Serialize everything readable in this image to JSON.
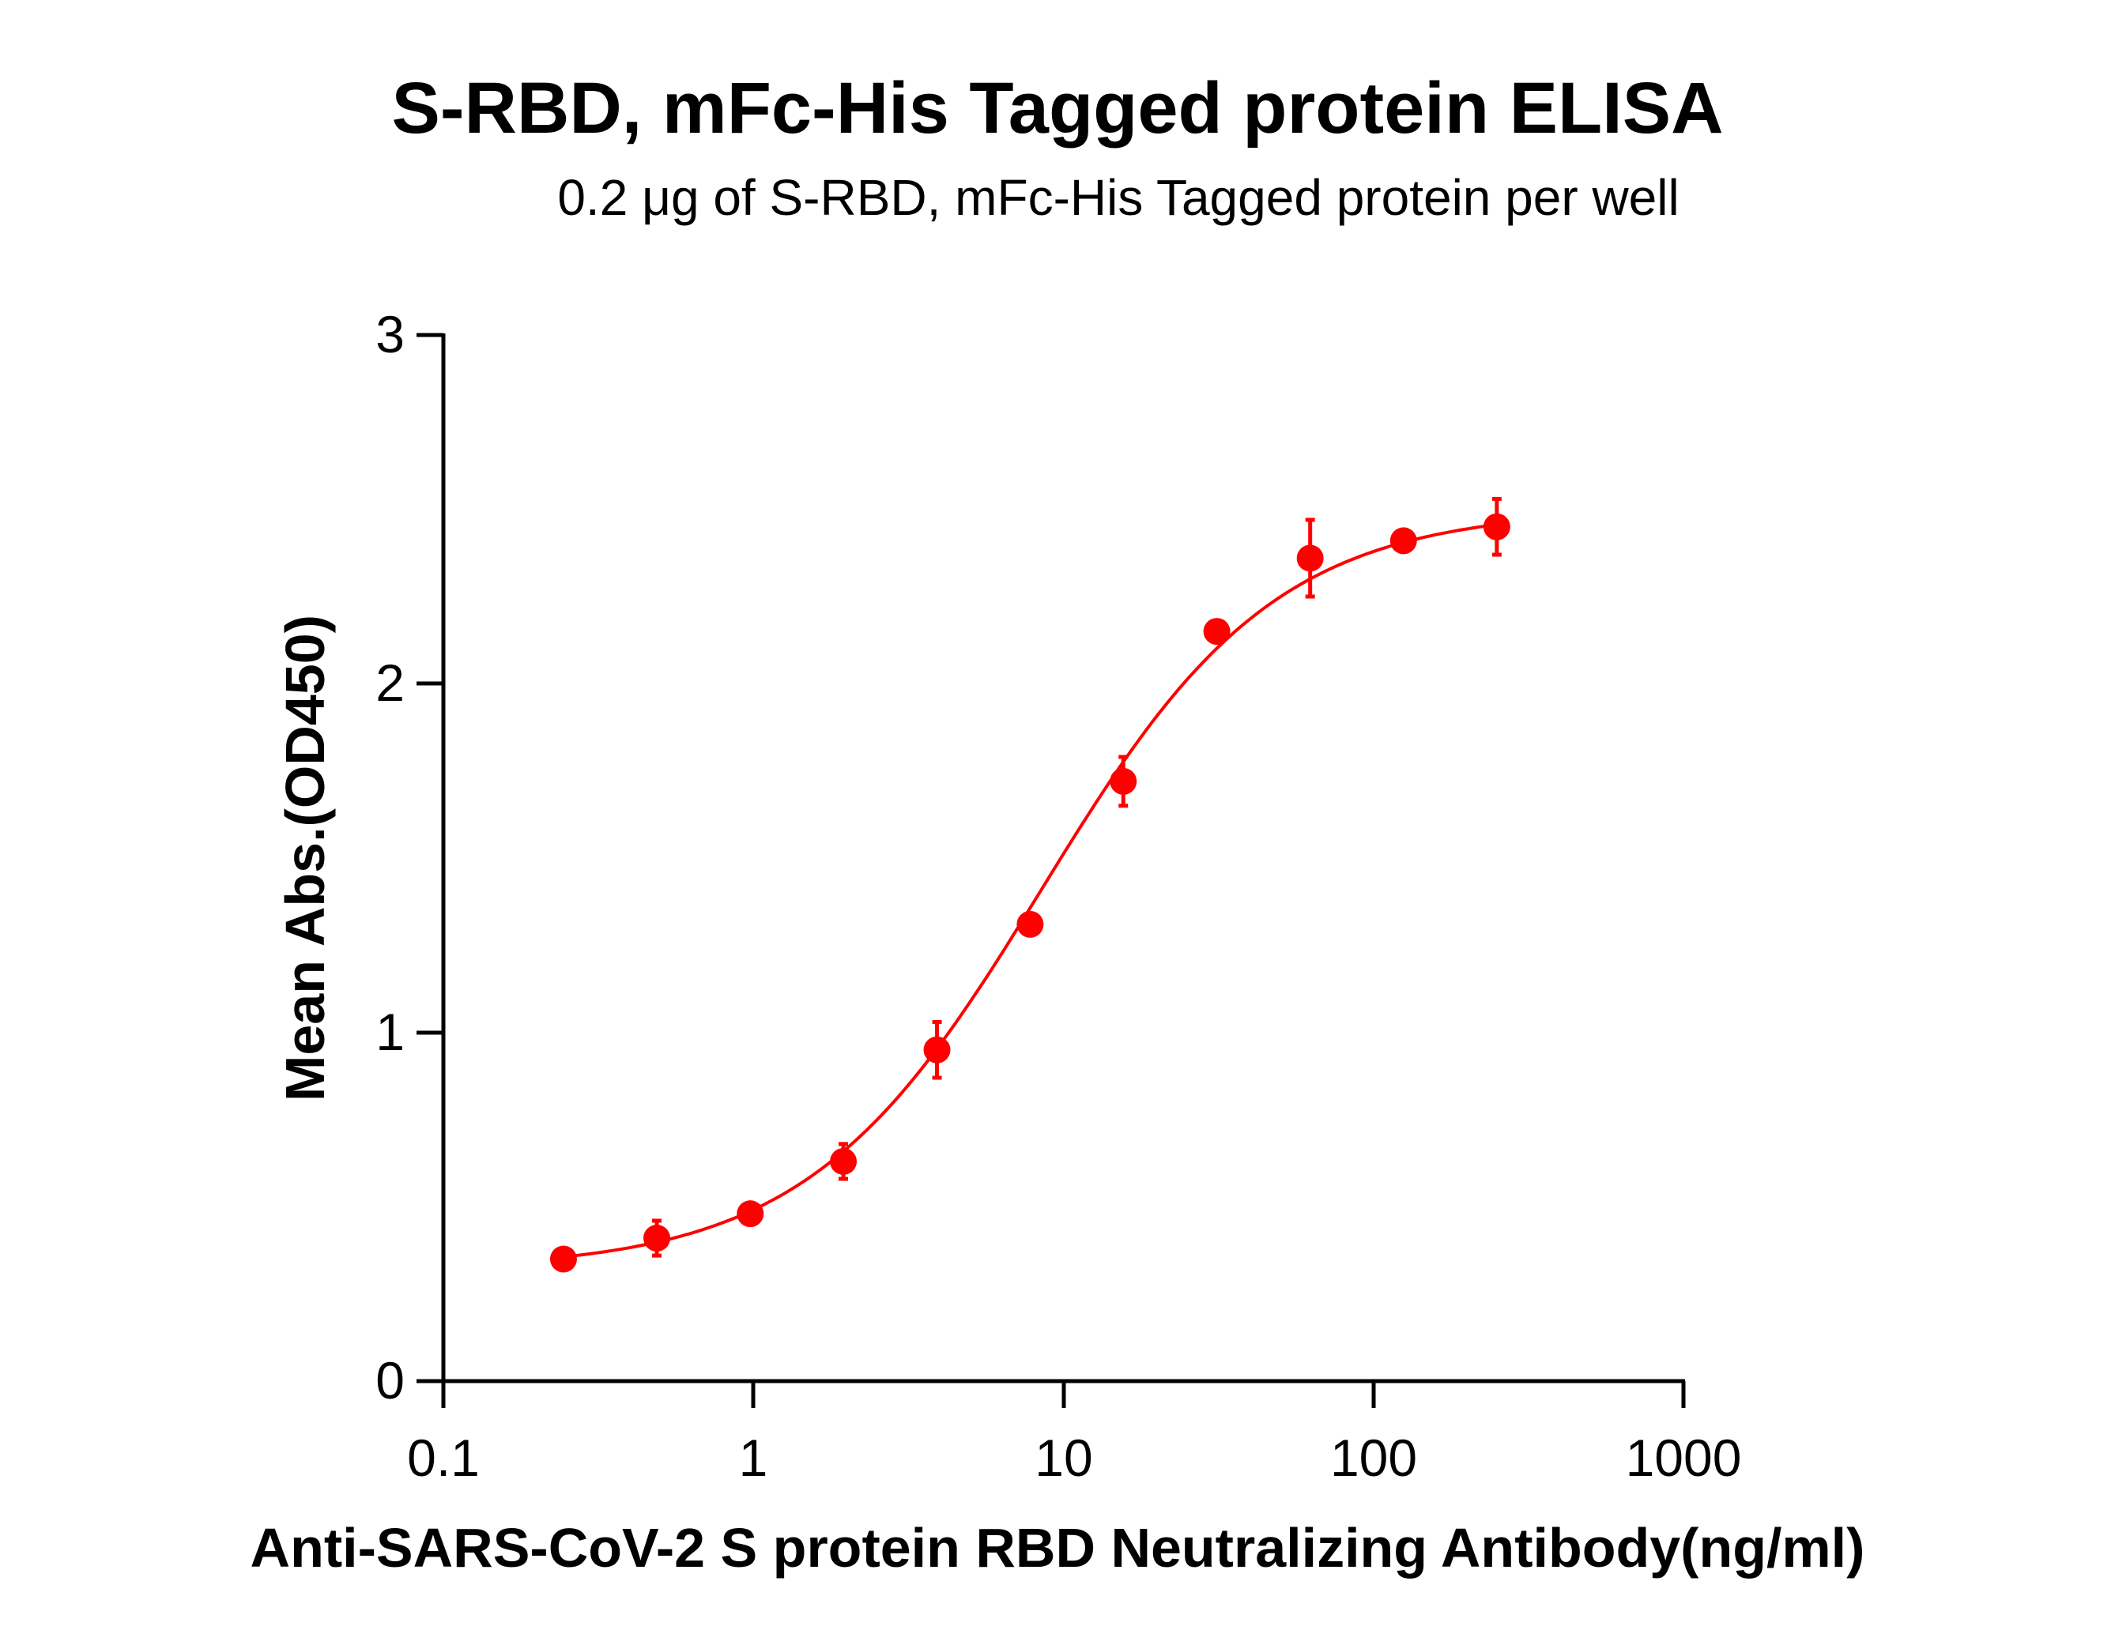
{
  "chart_data": {
    "type": "scatter",
    "title": "S-RBD,  mFc-His Tagged protein ELISA",
    "subtitle": "0.2 μg of S-RBD, mFc-His Tagged protein per well",
    "xlabel": "Anti-SARS-CoV-2 S protein RBD Neutralizing Antibody(ng/ml)",
    "ylabel": "Mean Abs.(OD450)",
    "xscale": "log",
    "xlim": [
      0.1,
      1000
    ],
    "ylim": [
      0,
      3
    ],
    "xticks": [
      "0.1",
      "1",
      "10",
      "100",
      "1000"
    ],
    "yticks": [
      "0",
      "1",
      "2",
      "3"
    ],
    "grid": false,
    "legend": null,
    "color": "#ff0000",
    "fit": "sigmoidal 4PL curve",
    "series": [
      {
        "name": "S-RBD, mFc-His Tagged protein",
        "x": [
          0.244,
          0.488,
          0.977,
          1.95,
          3.91,
          7.81,
          15.6,
          31.25,
          62.5,
          125,
          250
        ],
        "y": [
          0.35,
          0.41,
          0.48,
          0.63,
          0.95,
          1.31,
          1.72,
          2.15,
          2.36,
          2.41,
          2.45
        ],
        "error": [
          0.0,
          0.05,
          0.0,
          0.05,
          0.08,
          0.0,
          0.07,
          0.0,
          0.11,
          0.03,
          0.08
        ]
      }
    ]
  },
  "labels": {
    "title": "S-RBD,  mFc-His Tagged protein ELISA",
    "subtitle": "0.2 μg of S-RBD, mFc-His Tagged protein per well",
    "xlabel": "Anti-SARS-CoV-2 S protein RBD Neutralizing Antibody(ng/ml)",
    "ylabel": "Mean Abs.(OD450)",
    "xticks": [
      "0.1",
      "1",
      "10",
      "100",
      "1000"
    ],
    "yticks": [
      "0",
      "1",
      "2",
      "3"
    ]
  }
}
